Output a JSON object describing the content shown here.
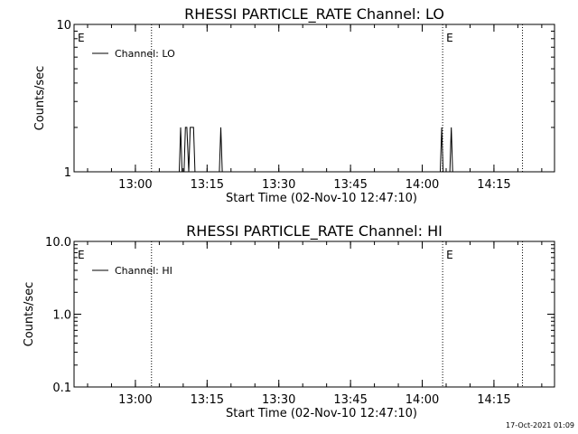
{
  "chart_data": [
    {
      "type": "line",
      "title": "RHESSI PARTICLE_RATE Channel: LO",
      "xlabel": "Start Time (02-Nov-10 12:47:10)",
      "ylabel": "Counts/sec",
      "y_scale": "log",
      "ylim": [
        1,
        10
      ],
      "y_ticks": [
        {
          "v": 1,
          "label": "1"
        },
        {
          "v": 10,
          "label": "10"
        }
      ],
      "xlim_minutes": [
        0,
        100.5
      ],
      "x_ticks": [
        {
          "v": 12.83,
          "label": "13:00"
        },
        {
          "v": 27.83,
          "label": "13:15"
        },
        {
          "v": 42.83,
          "label": "13:30"
        },
        {
          "v": 57.83,
          "label": "13:45"
        },
        {
          "v": 72.83,
          "label": "14:00"
        },
        {
          "v": 87.83,
          "label": "14:15"
        }
      ],
      "vlines_minutes": [
        16.2,
        77.1,
        93.8
      ],
      "markers": [
        {
          "x": 0,
          "label": "E"
        },
        {
          "x": 77.1,
          "label": "E"
        }
      ],
      "legend": {
        "position": "top-left",
        "entries": [
          "Channel: LO"
        ]
      },
      "series": [
        {
          "name": "Channel: LO",
          "x": [
            0,
            22.0,
            22.3,
            22.6,
            23.0,
            23.3,
            23.6,
            24.0,
            24.3,
            24.6,
            25.0,
            25.3,
            25.6,
            26.0,
            30.4,
            30.7,
            31.0,
            76.6,
            76.9,
            77.2,
            77.5,
            78.6,
            78.9,
            79.2,
            100.5
          ],
          "y": [
            1,
            1,
            2,
            1,
            1,
            2,
            2,
            1,
            2,
            2,
            2,
            1,
            1,
            1,
            1,
            2,
            1,
            1,
            2,
            1,
            1,
            1,
            2,
            1,
            1
          ]
        }
      ]
    },
    {
      "type": "line",
      "title": "RHESSI PARTICLE_RATE Channel: HI",
      "xlabel": "Start Time (02-Nov-10 12:47:10)",
      "ylabel": "Counts/sec",
      "y_scale": "log",
      "ylim": [
        0.1,
        10
      ],
      "y_ticks": [
        {
          "v": 0.1,
          "label": "0.1"
        },
        {
          "v": 1,
          "label": "1.0"
        },
        {
          "v": 10,
          "label": "10.0"
        }
      ],
      "xlim_minutes": [
        0,
        100.5
      ],
      "x_ticks": [
        {
          "v": 12.83,
          "label": "13:00"
        },
        {
          "v": 27.83,
          "label": "13:15"
        },
        {
          "v": 42.83,
          "label": "13:30"
        },
        {
          "v": 57.83,
          "label": "13:45"
        },
        {
          "v": 72.83,
          "label": "14:00"
        },
        {
          "v": 87.83,
          "label": "14:15"
        }
      ],
      "vlines_minutes": [
        16.2,
        77.1,
        93.8
      ],
      "markers": [
        {
          "x": 0,
          "label": "E"
        },
        {
          "x": 77.1,
          "label": "E"
        }
      ],
      "legend": {
        "position": "top-left",
        "entries": [
          "Channel: HI"
        ]
      },
      "series": [
        {
          "name": "Channel: HI",
          "x": [],
          "y": []
        }
      ]
    }
  ],
  "timestamp": "17-Oct-2021 01:09"
}
